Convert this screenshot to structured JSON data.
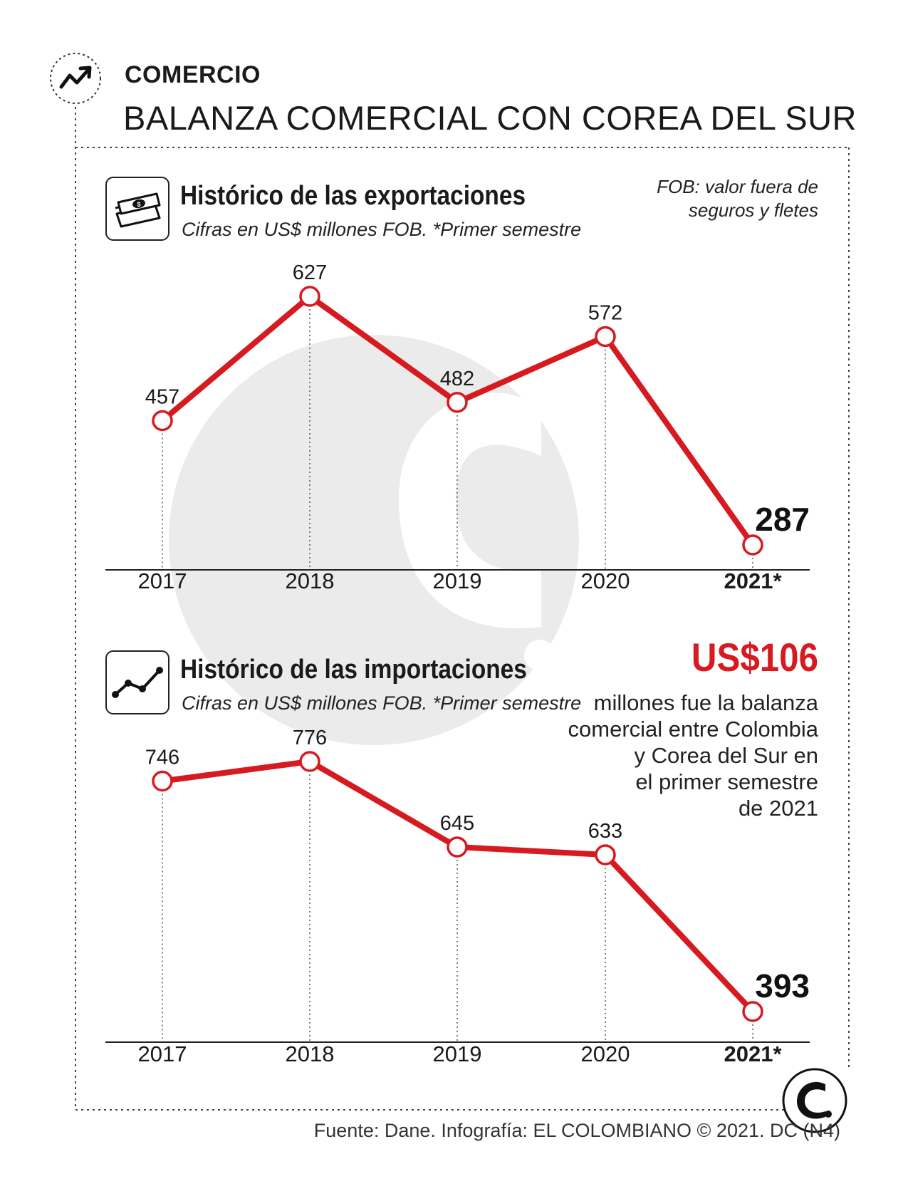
{
  "header": {
    "section": "COMERCIO",
    "title": "BALANZA COMERCIAL CON COREA DEL SUR"
  },
  "note": {
    "line1": "FOB: valor fuera de",
    "line2": "seguros y fletes"
  },
  "highlight": {
    "value": "US$106",
    "lines": [
      "millones fue la balanza",
      "comercial entre Colombia",
      "y Corea del Sur en",
      "el primer semestre",
      "de 2021"
    ]
  },
  "footer": "Fuente: Dane. Infografía: EL COLOMBIANO © 2021. DC (N4)",
  "colors": {
    "line": "#d71920",
    "text": "#1a1a1a",
    "watermark": "#ebebeb"
  },
  "chart_data": [
    {
      "type": "line",
      "title": "Histórico de las exportaciones",
      "subtitle": "Cifras en US$ millones FOB.  *Primer semestre",
      "icon": "money-icon",
      "categories": [
        "2017",
        "2018",
        "2019",
        "2020",
        "2021*"
      ],
      "values": [
        457,
        627,
        482,
        572,
        287
      ],
      "labels": [
        "457",
        "627",
        "482",
        "572",
        "287"
      ],
      "highlight_last": true
    },
    {
      "type": "line",
      "title": "Histórico de las importaciones",
      "subtitle": "Cifras en US$ millones FOB.  *Primer semestre",
      "icon": "line-chart-icon",
      "categories": [
        "2017",
        "2018",
        "2019",
        "2020",
        "2021*"
      ],
      "values": [
        746,
        776,
        645,
        633,
        393
      ],
      "labels": [
        "746",
        "776",
        "645",
        "633",
        "393"
      ],
      "highlight_last": true
    }
  ]
}
